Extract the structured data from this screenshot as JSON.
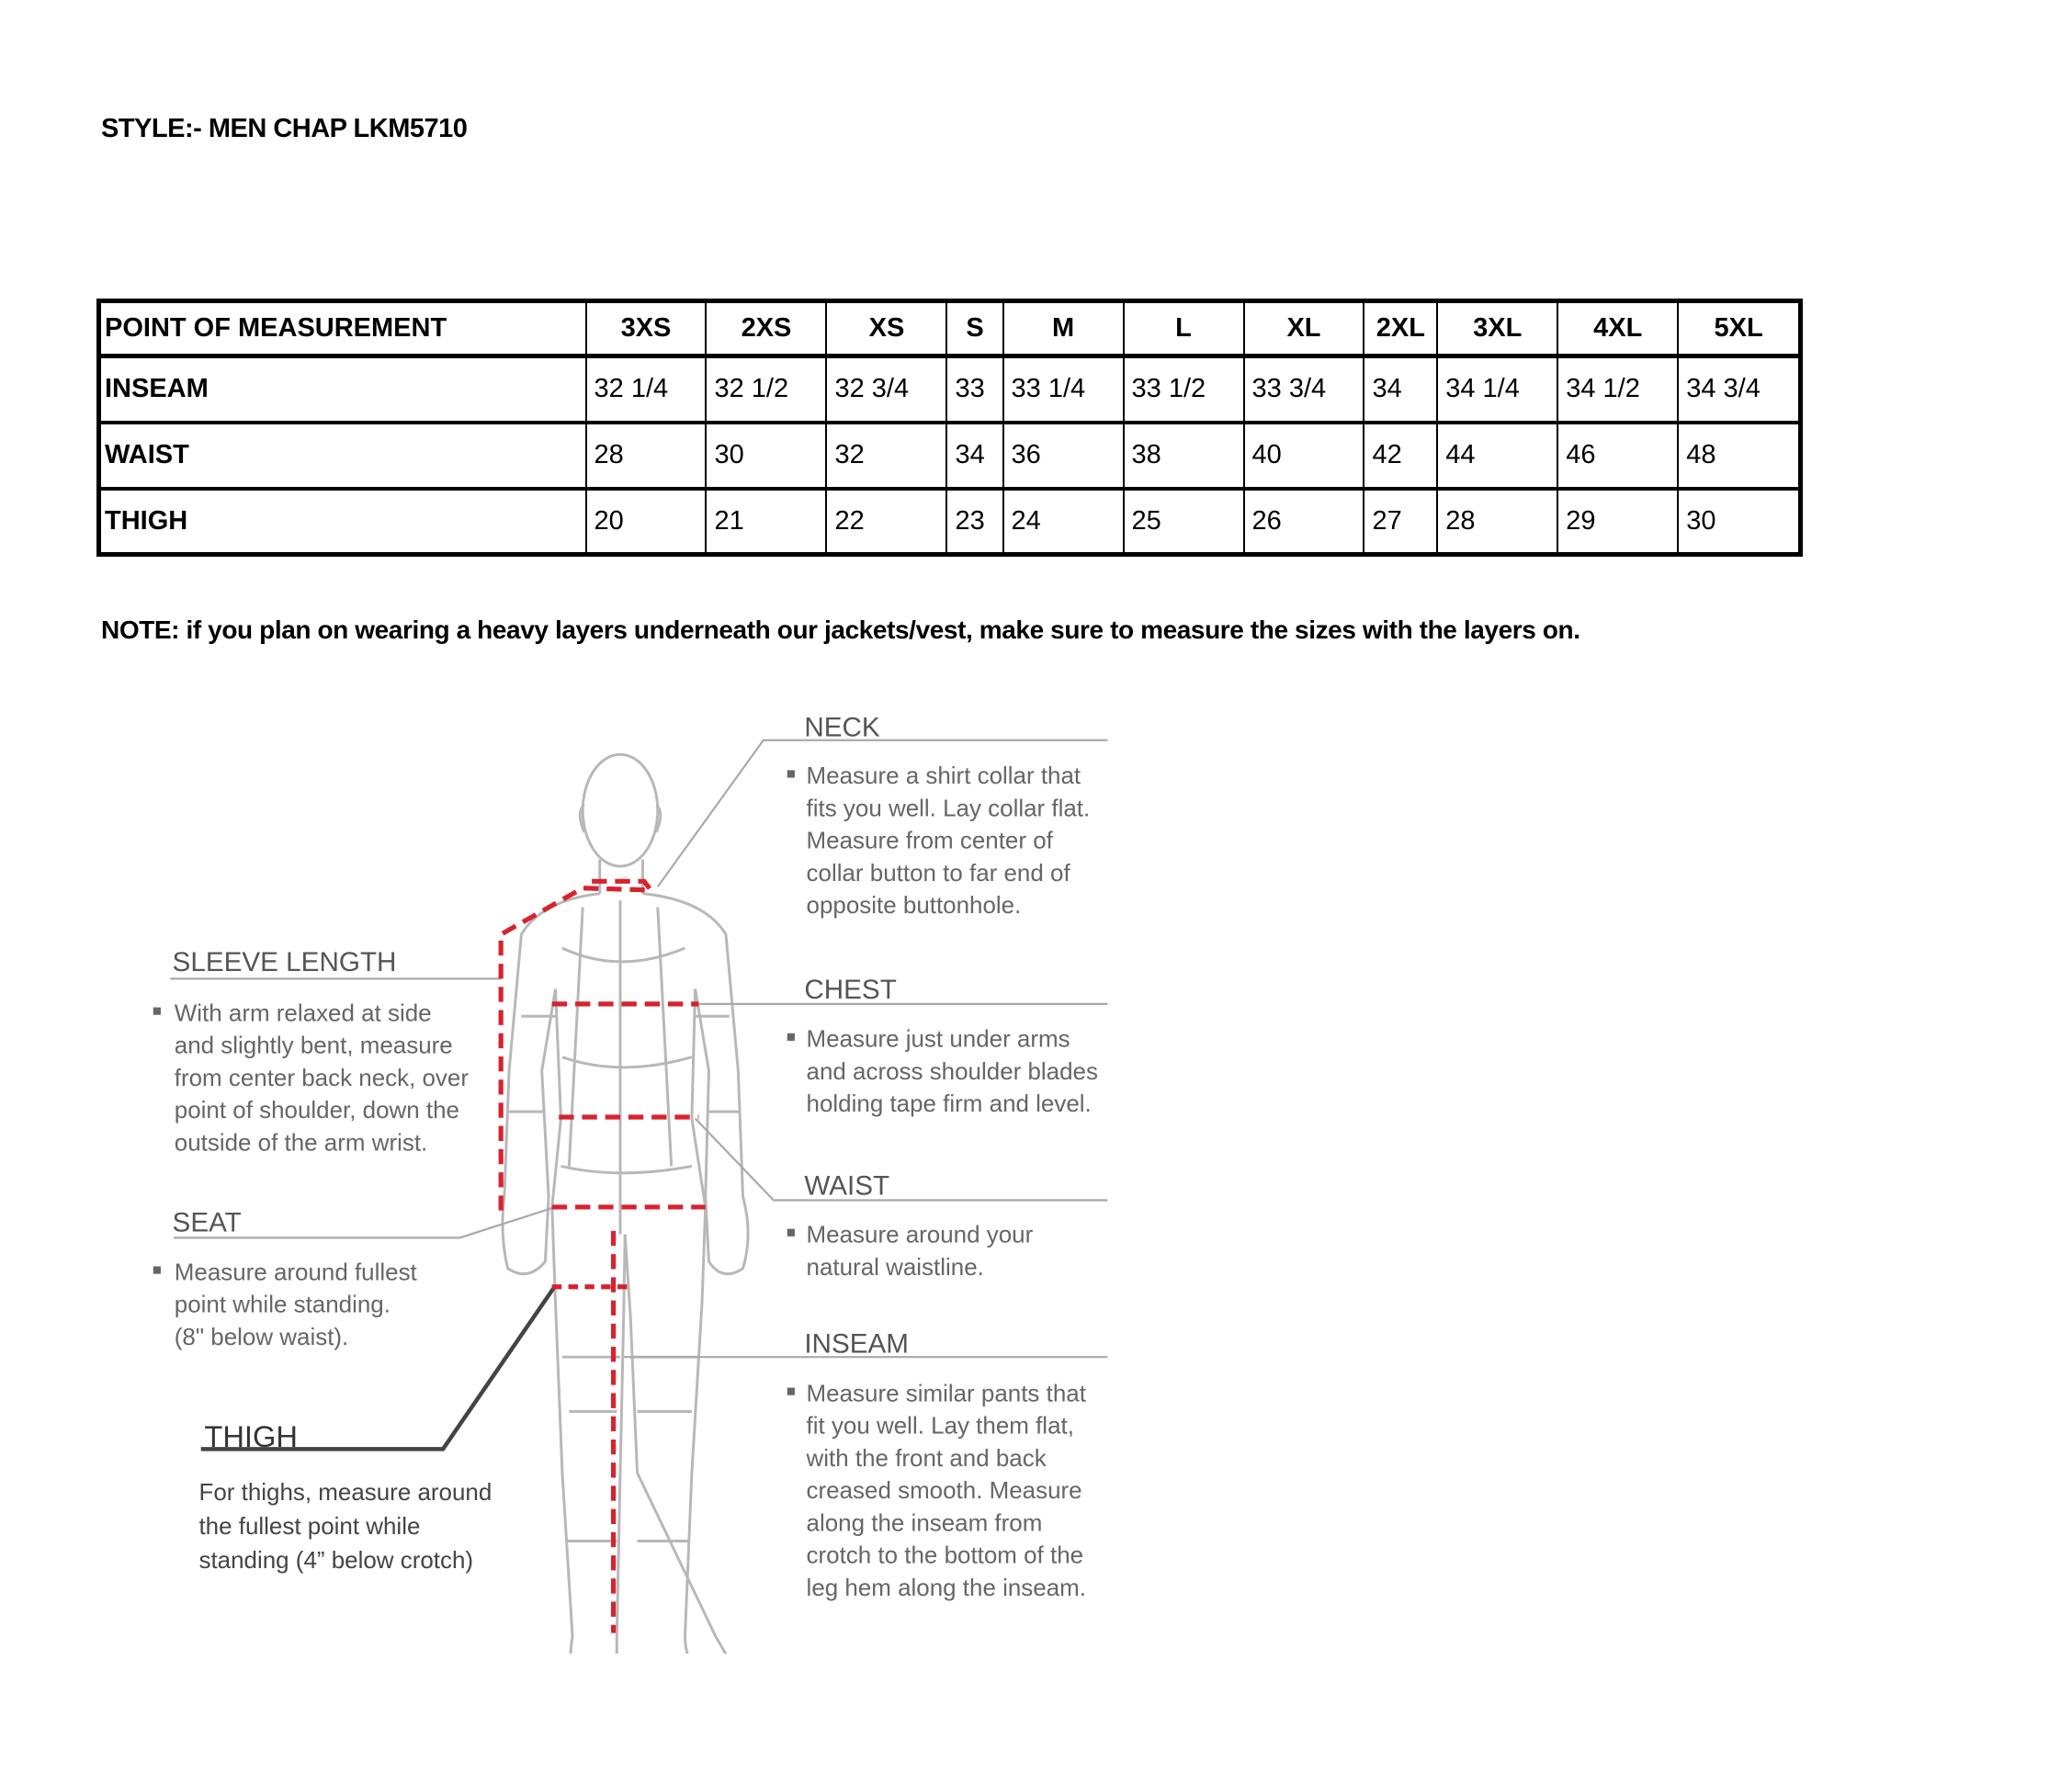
{
  "title": "STYLE:- MEN CHAP LKM5710",
  "table": {
    "headers": [
      "POINT OF MEASUREMENT",
      "3XS",
      "2XS",
      "XS",
      "S",
      "M",
      "L",
      "XL",
      "2XL",
      "3XL",
      "4XL",
      "5XL"
    ],
    "rows": [
      {
        "label": "INSEAM",
        "values": [
          "32 1/4",
          "32 1/2",
          "32 3/4",
          "33",
          "33 1/4",
          "33 1/2",
          "33 3/4",
          "34",
          "34 1/4",
          "34 1/2",
          "34 3/4"
        ]
      },
      {
        "label": "WAIST",
        "values": [
          "28",
          "30",
          "32",
          "34",
          "36",
          "38",
          "40",
          "42",
          "44",
          "46",
          "48"
        ]
      },
      {
        "label": "THIGH",
        "values": [
          "20",
          "21",
          "22",
          "23",
          "24",
          "25",
          "26",
          "27",
          "28",
          "29",
          "30"
        ]
      }
    ]
  },
  "note": "NOTE: if you plan on wearing a heavy layers underneath our jackets/vest, make sure to measure the sizes with the layers on.",
  "diagram": {
    "measure_color": "#d7232e",
    "neck": {
      "heading": "NECK",
      "lines": [
        "Measure a shirt collar that",
        "fits you well. Lay collar flat.",
        "Measure from center of",
        "collar button to far end of",
        "opposite buttonhole."
      ]
    },
    "sleeve": {
      "heading": "SLEEVE LENGTH",
      "lines": [
        "With arm relaxed at side",
        "and slightly bent, measure",
        "from center back neck, over",
        "point of shoulder, down the",
        "outside of the arm wrist."
      ]
    },
    "chest": {
      "heading": "CHEST",
      "lines": [
        "Measure just under arms",
        "and across shoulder blades",
        "holding tape firm and level."
      ]
    },
    "waist": {
      "heading": "WAIST",
      "lines": [
        "Measure around your",
        "natural waistline."
      ]
    },
    "seat": {
      "heading": "SEAT",
      "lines": [
        "Measure around fullest",
        "point while standing.",
        "(8\" below waist)."
      ]
    },
    "inseam": {
      "heading": "INSEAM",
      "lines": [
        "Measure similar pants that",
        "fit you well. Lay them flat,",
        "with the front and back",
        "creased smooth. Measure",
        "along the inseam from",
        "crotch to the bottom of the",
        "leg hem along the inseam."
      ]
    },
    "thigh": {
      "heading": "THIGH",
      "lines": [
        "For thighs, measure around",
        "the fullest point while",
        "standing (4” below crotch)"
      ]
    }
  }
}
